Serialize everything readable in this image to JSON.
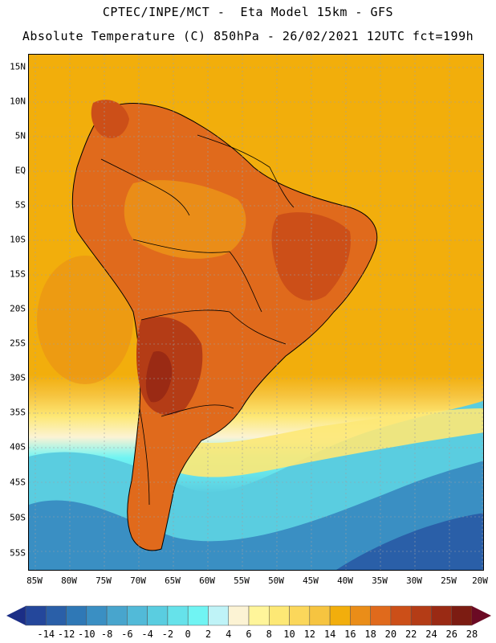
{
  "title_line1": "CPTEC/INPE/MCT -  Eta Model 15km - GFS",
  "title_line2": "Absolute Temperature (C) 850hPa - 26/02/2021 12UTC fct=199h",
  "map": {
    "lat_labels": [
      "15N",
      "10N",
      "5N",
      "EQ",
      "5S",
      "10S",
      "15S",
      "20S",
      "25S",
      "30S",
      "35S",
      "40S",
      "45S",
      "50S",
      "55S"
    ],
    "lon_labels": [
      "85W",
      "80W",
      "75W",
      "70W",
      "65W",
      "60W",
      "55W",
      "50W",
      "45W",
      "40W",
      "35W",
      "30W",
      "25W",
      "20W"
    ],
    "colors": {
      "ocean_warm": "#f0ae0e",
      "land_hot": "#d86b1e",
      "land_hotter": "#c2571b",
      "land_hottest": "#a7421a",
      "coast_line": "#000000",
      "grid_line": "#9aa0a6"
    }
  },
  "colorbar": {
    "labels": [
      "-14",
      "-12",
      "-10",
      "-8",
      "-6",
      "-4",
      "-2",
      "0",
      "2",
      "4",
      "6",
      "8",
      "10",
      "12",
      "14",
      "16",
      "18",
      "20",
      "22",
      "24",
      "26",
      "28"
    ],
    "colors": [
      "#24479b",
      "#2a5fa8",
      "#2f78b6",
      "#3a8fc3",
      "#48a5cd",
      "#52bad8",
      "#5acde0",
      "#66e2ea",
      "#70f4f3",
      "#bff3f7",
      "#fcf3d4",
      "#fff59a",
      "#fde875",
      "#fbd75b",
      "#f6c440",
      "#f2ae0c",
      "#ea8d18",
      "#e06a1c",
      "#cc4f18",
      "#b43c16",
      "#9a2a14",
      "#7c1c12"
    ],
    "under_color": "#1b2e86",
    "over_color": "#6b0a24"
  }
}
